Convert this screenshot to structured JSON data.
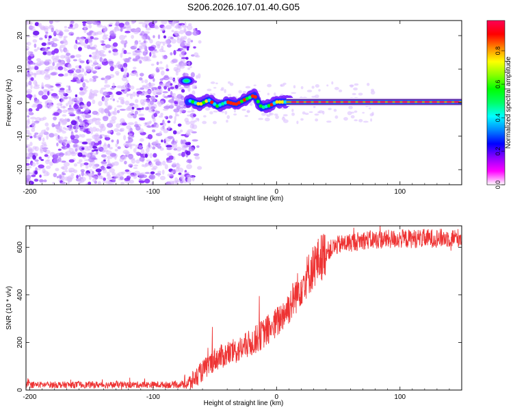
{
  "title": "S206.2026.107.01.40.G05",
  "chart_data": [
    {
      "type": "heatmap",
      "xlabel": "Height of straight line (km)",
      "ylabel": "Frequency (Hz)",
      "xlim": [
        -203,
        150
      ],
      "ylim": [
        -24.5,
        24.5
      ],
      "xticks": [
        -200,
        -100,
        0,
        100
      ],
      "yticks": [
        -20,
        -10,
        0,
        10,
        20
      ],
      "colorbar": {
        "label": "Normalized spectral amplitude",
        "range": [
          0,
          0.98
        ],
        "ticks": [
          "0.0",
          "0.2",
          "0.4",
          "0.6",
          "0.8"
        ],
        "colormap": [
          "#ffffff",
          "#ff00ff",
          "#8a00ff",
          "#0000ff",
          "#0088ff",
          "#00ffff",
          "#00ff66",
          "#00ff00",
          "#88ff00",
          "#ffff00",
          "#ff8800",
          "#ff0000",
          "#ff0055"
        ]
      },
      "features": {
        "noise_region_x": [
          -203,
          -70
        ],
        "main_ridge": [
          {
            "x": -70,
            "y": 0.5
          },
          {
            "x": -62,
            "y": -0.5
          },
          {
            "x": -55,
            "y": 0.8
          },
          {
            "x": -48,
            "y": -1.0
          },
          {
            "x": -40,
            "y": 0.2
          },
          {
            "x": -33,
            "y": -0.5
          },
          {
            "x": -25,
            "y": 1.0
          },
          {
            "x": -18,
            "y": 2.2
          },
          {
            "x": -12,
            "y": -1.5
          },
          {
            "x": -5,
            "y": -0.8
          },
          {
            "x": 0,
            "y": 0.2
          },
          {
            "x": 10,
            "y": 0.2
          },
          {
            "x": 150,
            "y": 0.2
          }
        ],
        "isolated_blob": {
          "x": -73,
          "y": 6.5
        }
      }
    },
    {
      "type": "line",
      "xlabel": "Height of straight line (km)",
      "ylabel": "SNR (10 * v/v)",
      "xlim": [
        -203,
        150
      ],
      "ylim": [
        0,
        690
      ],
      "xticks": [
        -200,
        -100,
        0,
        100
      ],
      "yticks": [
        0,
        200,
        400,
        600
      ],
      "color": "#ee3333",
      "trend": [
        {
          "x": -203,
          "y": 22
        },
        {
          "x": -80,
          "y": 22
        },
        {
          "x": -70,
          "y": 30
        },
        {
          "x": -60,
          "y": 80
        },
        {
          "x": -50,
          "y": 130
        },
        {
          "x": -40,
          "y": 150
        },
        {
          "x": -30,
          "y": 170
        },
        {
          "x": -20,
          "y": 200
        },
        {
          "x": -10,
          "y": 240
        },
        {
          "x": 0,
          "y": 280
        },
        {
          "x": 10,
          "y": 350
        },
        {
          "x": 20,
          "y": 440
        },
        {
          "x": 30,
          "y": 520
        },
        {
          "x": 40,
          "y": 580
        },
        {
          "x": 50,
          "y": 610
        },
        {
          "x": 70,
          "y": 630
        },
        {
          "x": 100,
          "y": 635
        },
        {
          "x": 150,
          "y": 640
        }
      ],
      "spikes": [
        {
          "x": -52,
          "y": 265
        },
        {
          "x": -48,
          "y": 120
        },
        {
          "x": -14,
          "y": 395
        },
        {
          "x": 5,
          "y": 300
        }
      ]
    }
  ]
}
